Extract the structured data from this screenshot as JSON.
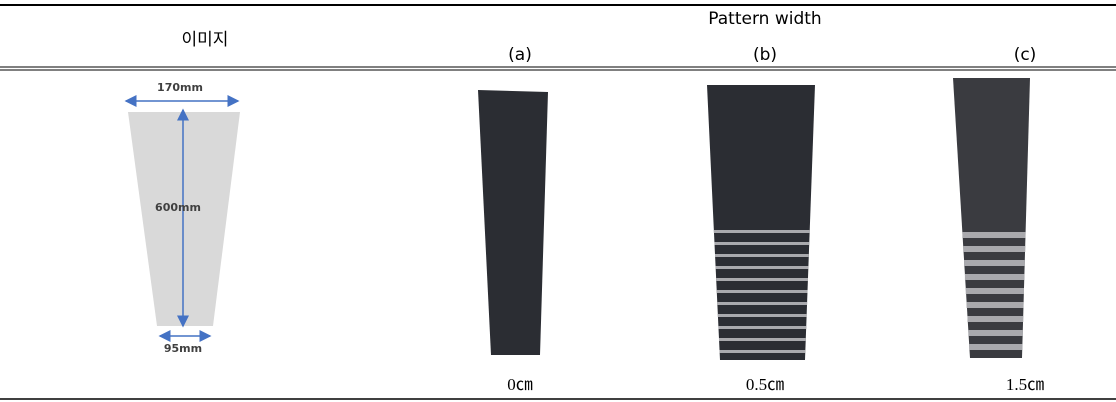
{
  "header": {
    "image_label": "이미지",
    "title": "Pattern width",
    "columns": [
      "(a)",
      "(b)",
      "(c)"
    ]
  },
  "diagram": {
    "top_width": "170mm",
    "length": "600mm",
    "bottom_width": "95mm"
  },
  "widths": [
    "0㎝",
    "0.5㎝",
    "1.5㎝"
  ]
}
